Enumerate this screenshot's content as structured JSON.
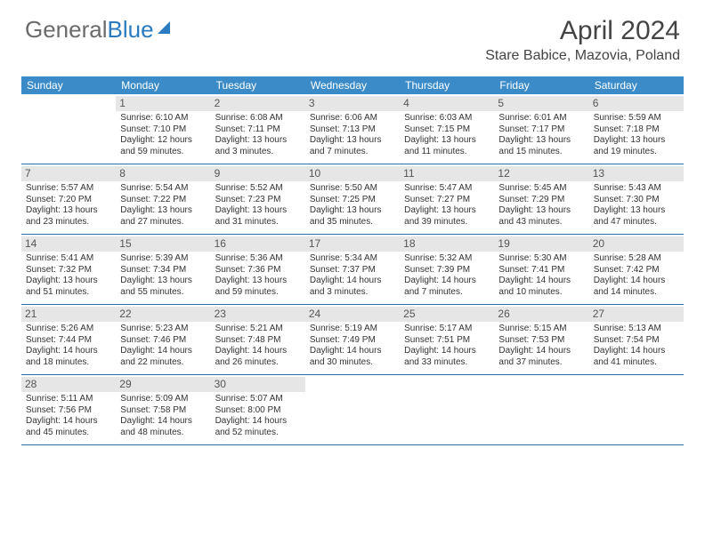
{
  "brand": {
    "part1": "General",
    "part2": "Blue"
  },
  "title": "April 2024",
  "location": "Stare Babice, Mazovia, Poland",
  "colors": {
    "header_bg": "#3b8bc9",
    "header_text": "#ffffff",
    "daynum_bg": "#e6e6e6",
    "week_border": "#2a6fa8",
    "brand_gray": "#6b6b6b",
    "brand_blue": "#2a7bbf"
  },
  "font": {
    "title_size": 30,
    "location_size": 16,
    "dayhead_size": 12,
    "cell_size": 10
  },
  "day_names": [
    "Sunday",
    "Monday",
    "Tuesday",
    "Wednesday",
    "Thursday",
    "Friday",
    "Saturday"
  ],
  "weeks": [
    [
      {
        "n": "",
        "lines": []
      },
      {
        "n": "1",
        "lines": [
          "Sunrise: 6:10 AM",
          "Sunset: 7:10 PM",
          "Daylight: 12 hours and 59 minutes."
        ]
      },
      {
        "n": "2",
        "lines": [
          "Sunrise: 6:08 AM",
          "Sunset: 7:11 PM",
          "Daylight: 13 hours and 3 minutes."
        ]
      },
      {
        "n": "3",
        "lines": [
          "Sunrise: 6:06 AM",
          "Sunset: 7:13 PM",
          "Daylight: 13 hours and 7 minutes."
        ]
      },
      {
        "n": "4",
        "lines": [
          "Sunrise: 6:03 AM",
          "Sunset: 7:15 PM",
          "Daylight: 13 hours and 11 minutes."
        ]
      },
      {
        "n": "5",
        "lines": [
          "Sunrise: 6:01 AM",
          "Sunset: 7:17 PM",
          "Daylight: 13 hours and 15 minutes."
        ]
      },
      {
        "n": "6",
        "lines": [
          "Sunrise: 5:59 AM",
          "Sunset: 7:18 PM",
          "Daylight: 13 hours and 19 minutes."
        ]
      }
    ],
    [
      {
        "n": "7",
        "lines": [
          "Sunrise: 5:57 AM",
          "Sunset: 7:20 PM",
          "Daylight: 13 hours and 23 minutes."
        ]
      },
      {
        "n": "8",
        "lines": [
          "Sunrise: 5:54 AM",
          "Sunset: 7:22 PM",
          "Daylight: 13 hours and 27 minutes."
        ]
      },
      {
        "n": "9",
        "lines": [
          "Sunrise: 5:52 AM",
          "Sunset: 7:23 PM",
          "Daylight: 13 hours and 31 minutes."
        ]
      },
      {
        "n": "10",
        "lines": [
          "Sunrise: 5:50 AM",
          "Sunset: 7:25 PM",
          "Daylight: 13 hours and 35 minutes."
        ]
      },
      {
        "n": "11",
        "lines": [
          "Sunrise: 5:47 AM",
          "Sunset: 7:27 PM",
          "Daylight: 13 hours and 39 minutes."
        ]
      },
      {
        "n": "12",
        "lines": [
          "Sunrise: 5:45 AM",
          "Sunset: 7:29 PM",
          "Daylight: 13 hours and 43 minutes."
        ]
      },
      {
        "n": "13",
        "lines": [
          "Sunrise: 5:43 AM",
          "Sunset: 7:30 PM",
          "Daylight: 13 hours and 47 minutes."
        ]
      }
    ],
    [
      {
        "n": "14",
        "lines": [
          "Sunrise: 5:41 AM",
          "Sunset: 7:32 PM",
          "Daylight: 13 hours and 51 minutes."
        ]
      },
      {
        "n": "15",
        "lines": [
          "Sunrise: 5:39 AM",
          "Sunset: 7:34 PM",
          "Daylight: 13 hours and 55 minutes."
        ]
      },
      {
        "n": "16",
        "lines": [
          "Sunrise: 5:36 AM",
          "Sunset: 7:36 PM",
          "Daylight: 13 hours and 59 minutes."
        ]
      },
      {
        "n": "17",
        "lines": [
          "Sunrise: 5:34 AM",
          "Sunset: 7:37 PM",
          "Daylight: 14 hours and 3 minutes."
        ]
      },
      {
        "n": "18",
        "lines": [
          "Sunrise: 5:32 AM",
          "Sunset: 7:39 PM",
          "Daylight: 14 hours and 7 minutes."
        ]
      },
      {
        "n": "19",
        "lines": [
          "Sunrise: 5:30 AM",
          "Sunset: 7:41 PM",
          "Daylight: 14 hours and 10 minutes."
        ]
      },
      {
        "n": "20",
        "lines": [
          "Sunrise: 5:28 AM",
          "Sunset: 7:42 PM",
          "Daylight: 14 hours and 14 minutes."
        ]
      }
    ],
    [
      {
        "n": "21",
        "lines": [
          "Sunrise: 5:26 AM",
          "Sunset: 7:44 PM",
          "Daylight: 14 hours and 18 minutes."
        ]
      },
      {
        "n": "22",
        "lines": [
          "Sunrise: 5:23 AM",
          "Sunset: 7:46 PM",
          "Daylight: 14 hours and 22 minutes."
        ]
      },
      {
        "n": "23",
        "lines": [
          "Sunrise: 5:21 AM",
          "Sunset: 7:48 PM",
          "Daylight: 14 hours and 26 minutes."
        ]
      },
      {
        "n": "24",
        "lines": [
          "Sunrise: 5:19 AM",
          "Sunset: 7:49 PM",
          "Daylight: 14 hours and 30 minutes."
        ]
      },
      {
        "n": "25",
        "lines": [
          "Sunrise: 5:17 AM",
          "Sunset: 7:51 PM",
          "Daylight: 14 hours and 33 minutes."
        ]
      },
      {
        "n": "26",
        "lines": [
          "Sunrise: 5:15 AM",
          "Sunset: 7:53 PM",
          "Daylight: 14 hours and 37 minutes."
        ]
      },
      {
        "n": "27",
        "lines": [
          "Sunrise: 5:13 AM",
          "Sunset: 7:54 PM",
          "Daylight: 14 hours and 41 minutes."
        ]
      }
    ],
    [
      {
        "n": "28",
        "lines": [
          "Sunrise: 5:11 AM",
          "Sunset: 7:56 PM",
          "Daylight: 14 hours and 45 minutes."
        ]
      },
      {
        "n": "29",
        "lines": [
          "Sunrise: 5:09 AM",
          "Sunset: 7:58 PM",
          "Daylight: 14 hours and 48 minutes."
        ]
      },
      {
        "n": "30",
        "lines": [
          "Sunrise: 5:07 AM",
          "Sunset: 8:00 PM",
          "Daylight: 14 hours and 52 minutes."
        ]
      },
      {
        "n": "",
        "lines": []
      },
      {
        "n": "",
        "lines": []
      },
      {
        "n": "",
        "lines": []
      },
      {
        "n": "",
        "lines": []
      }
    ]
  ]
}
